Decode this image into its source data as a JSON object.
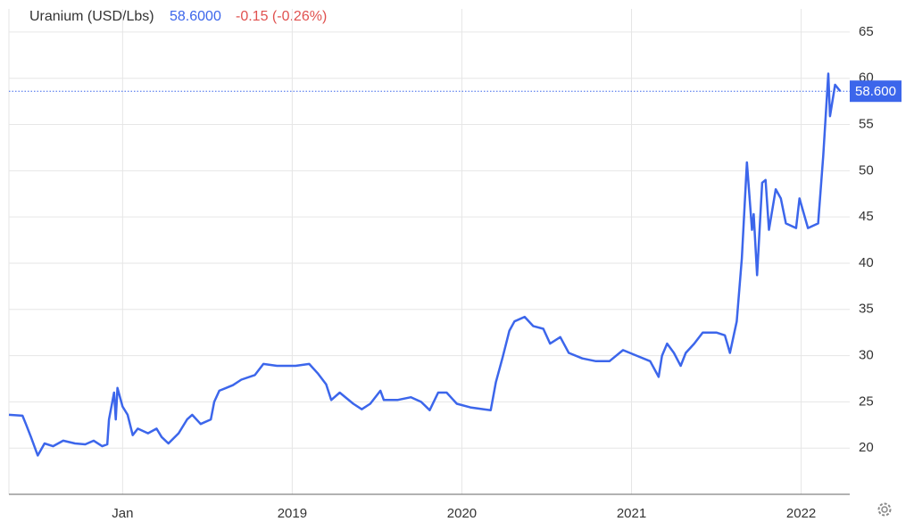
{
  "chart_data": {
    "type": "line",
    "title": "Uranium (USD/Lbs)",
    "price": "58.6000",
    "change": "-0.15 (-0.26%)",
    "last_label": {
      "value": 58.6,
      "label": "58.600"
    },
    "xlim": [
      2017.33,
      2022.26
    ],
    "xticks": [
      {
        "value": 2018,
        "label": "Jan"
      },
      2019,
      2020,
      2021,
      2022
    ],
    "ylim": [
      15,
      67.5
    ],
    "yticks": [
      20,
      25,
      30,
      35,
      40,
      45,
      50,
      55,
      60,
      65
    ],
    "grid": true,
    "series": [
      {
        "color": "#3c66eb",
        "x": [
          2017.33,
          2017.41,
          2017.43,
          2017.46,
          2017.5,
          2017.54,
          2017.59,
          2017.65,
          2017.72,
          2017.78,
          2017.83,
          2017.88,
          2017.91,
          2017.92,
          2017.95,
          2017.96,
          2017.97,
          2018.0,
          2018.03,
          2018.06,
          2018.09,
          2018.15,
          2018.2,
          2018.23,
          2018.27,
          2018.33,
          2018.38,
          2018.41,
          2018.46,
          2018.52,
          2018.54,
          2018.57,
          2018.65,
          2018.7,
          2018.78,
          2018.83,
          2018.91,
          2019.02,
          2019.1,
          2019.15,
          2019.2,
          2019.23,
          2019.28,
          2019.36,
          2019.41,
          2019.46,
          2019.52,
          2019.54,
          2019.62,
          2019.7,
          2019.76,
          2019.81,
          2019.86,
          2019.91,
          2019.97,
          2020.05,
          2020.13,
          2020.17,
          2020.2,
          2020.24,
          2020.28,
          2020.31,
          2020.37,
          2020.42,
          2020.48,
          2020.52,
          2020.58,
          2020.63,
          2020.71,
          2020.79,
          2020.87,
          2020.95,
          2021.03,
          2021.11,
          2021.16,
          2021.18,
          2021.21,
          2021.25,
          2021.29,
          2021.32,
          2021.37,
          2021.42,
          2021.5,
          2021.55,
          2021.58,
          2021.62,
          2021.65,
          2021.68,
          2021.71,
          2021.72,
          2021.74,
          2021.77,
          2021.79,
          2021.81,
          2021.85,
          2021.88,
          2021.91,
          2021.97,
          2021.99,
          2022.04,
          2022.1,
          2022.13,
          2022.16,
          2022.17,
          2022.2,
          2022.23
        ],
        "values": [
          23.6,
          23.5,
          22.6,
          21.2,
          19.2,
          20.5,
          20.2,
          20.8,
          20.5,
          20.4,
          20.8,
          20.2,
          20.4,
          23.1,
          26.0,
          23.1,
          26.5,
          24.5,
          23.6,
          21.4,
          22.1,
          21.6,
          22.1,
          21.2,
          20.5,
          21.6,
          23.1,
          23.6,
          22.6,
          23.1,
          25.0,
          26.2,
          26.8,
          27.4,
          27.9,
          29.1,
          28.9,
          28.9,
          29.1,
          28.1,
          26.9,
          25.2,
          26.0,
          24.8,
          24.2,
          24.8,
          26.2,
          25.2,
          25.2,
          25.5,
          25.0,
          24.1,
          26.0,
          26.0,
          24.8,
          24.4,
          24.2,
          24.1,
          27.1,
          29.8,
          32.7,
          33.7,
          34.2,
          33.2,
          32.9,
          31.3,
          32.0,
          30.3,
          29.7,
          29.4,
          29.4,
          30.6,
          30.0,
          29.4,
          27.7,
          30.0,
          31.3,
          30.3,
          28.9,
          30.3,
          31.3,
          32.5,
          32.5,
          32.2,
          30.3,
          33.7,
          40.5,
          50.9,
          43.6,
          45.3,
          38.7,
          48.7,
          49.0,
          43.6,
          48.0,
          47.0,
          44.3,
          43.8,
          47.0,
          43.8,
          44.3,
          51.6,
          60.5,
          55.9,
          59.3,
          58.6
        ]
      }
    ]
  }
}
